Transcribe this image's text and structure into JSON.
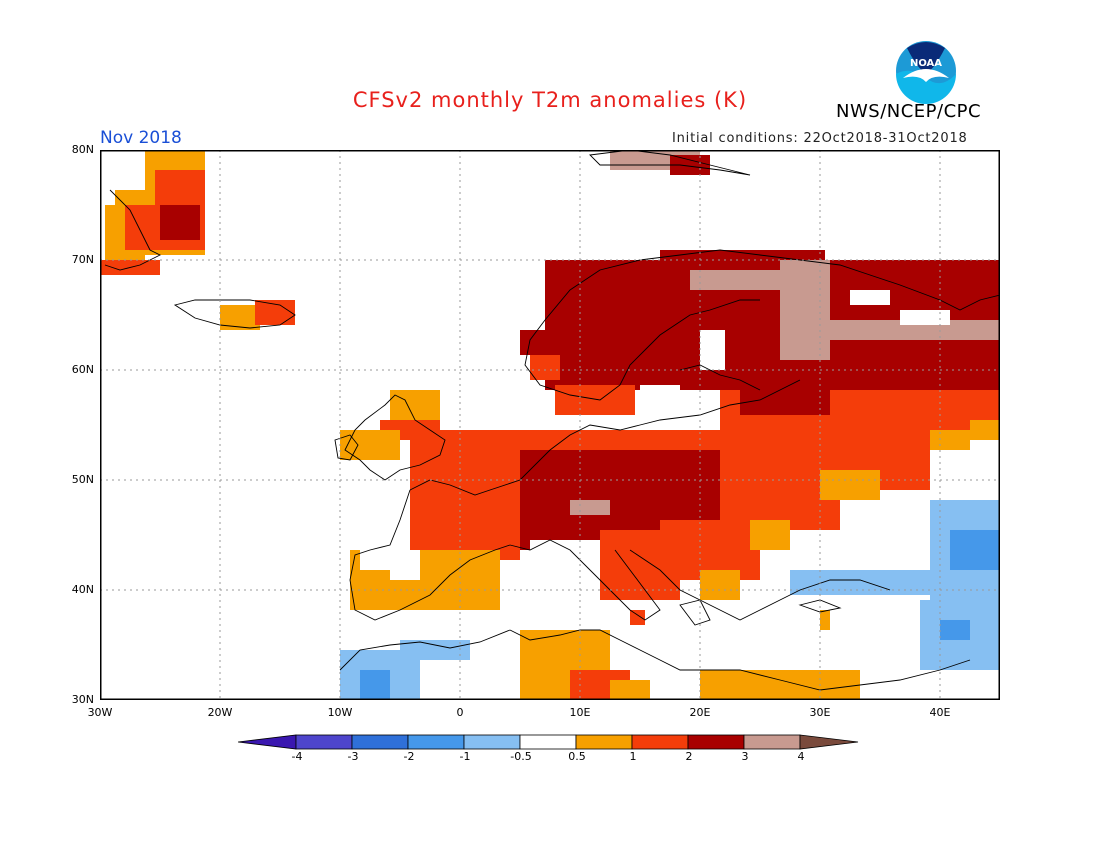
{
  "title": "CFSv2 monthly T2m anomalies (K)",
  "valid_month": "Nov 2018",
  "agency": "NWS/NCEP/CPC",
  "initial_conditions": "Initial conditions: 22Oct2018-31Oct2018",
  "logo_text": "NOAA",
  "lat_labels": [
    "80N",
    "70N",
    "60N",
    "50N",
    "40N",
    "30N"
  ],
  "lon_labels": [
    "30W",
    "20W",
    "10W",
    "0",
    "10E",
    "20E",
    "30E",
    "40E"
  ],
  "colorbar": {
    "ticks": [
      "-4",
      "-3",
      "-2",
      "-1",
      "-0.5",
      "0.5",
      "1",
      "2",
      "3",
      "4"
    ],
    "colors": [
      "#3a17b0",
      "#4e45cc",
      "#2f70d9",
      "#4598ea",
      "#86bff2",
      "#ffffff",
      "#f7a000",
      "#f43d0a",
      "#a80000",
      "#c89a90",
      "#7a4a3c"
    ]
  },
  "map_colors": {
    "land_fill": "#ffffff",
    "sea": "#ffffff",
    "coast": "#000000",
    "grid": "#9a9a9a"
  }
}
